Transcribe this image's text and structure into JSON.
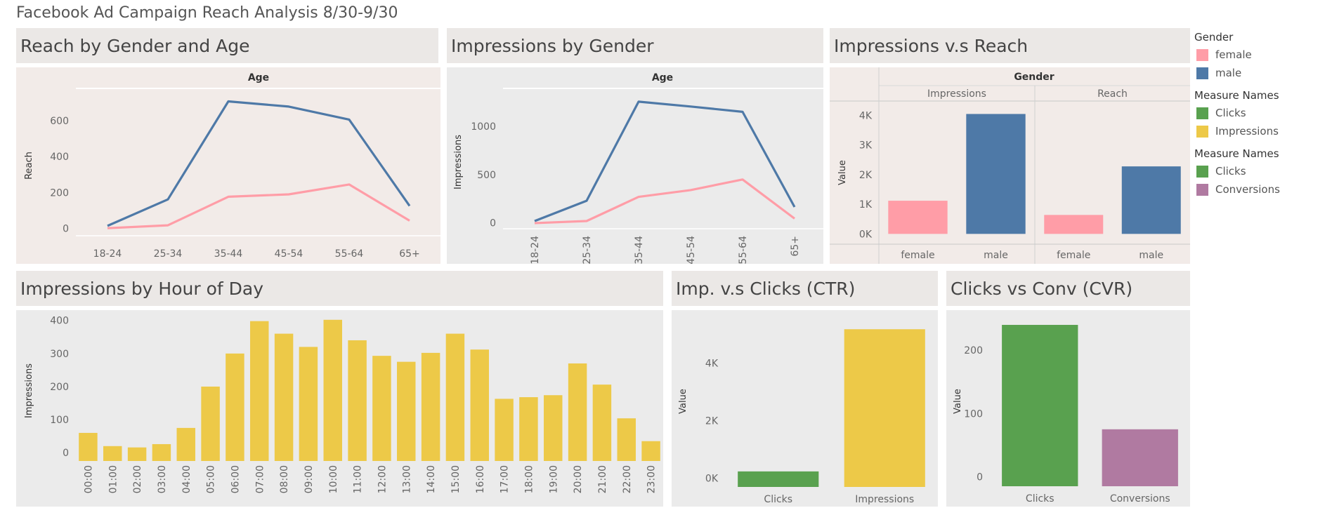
{
  "dashboard_title": "Facebook Ad Campaign Reach Analysis 8/30-9/30",
  "colors": {
    "female": "#ff9da7",
    "male": "#4e79a7",
    "clicks": "#59a14f",
    "impressions": "#edc948",
    "conversions": "#b07aa1"
  },
  "legend": {
    "gender_title": "Gender",
    "gender_items": [
      {
        "label": "female",
        "color": "#ff9da7"
      },
      {
        "label": "male",
        "color": "#4e79a7"
      }
    ],
    "measure1_title": "Measure Names",
    "measure1_items": [
      {
        "label": "Clicks",
        "color": "#59a14f"
      },
      {
        "label": "Impressions",
        "color": "#edc948"
      }
    ],
    "measure2_title": "Measure Names",
    "measure2_items": [
      {
        "label": "Clicks",
        "color": "#59a14f"
      },
      {
        "label": "Conversions",
        "color": "#b07aa1"
      }
    ]
  },
  "chart_data": [
    {
      "id": "reach",
      "type": "line",
      "title": "Reach by Gender and Age",
      "header": "Age",
      "ylabel": "Reach",
      "categories": [
        "18-24",
        "25-34",
        "35-44",
        "45-54",
        "55-64",
        "65+"
      ],
      "ylim": [
        -40,
        740
      ],
      "yticks": [
        0,
        200,
        400,
        600
      ],
      "series": [
        {
          "name": "male",
          "values": [
            15,
            162,
            707,
            678,
            606,
            126
          ]
        },
        {
          "name": "female",
          "values": [
            2,
            18,
            177,
            190,
            245,
            44
          ]
        }
      ]
    },
    {
      "id": "impressions_gender",
      "type": "line",
      "title": "Impressions by Gender",
      "header": "Age",
      "ylabel": "Impressions",
      "categories": [
        "18-24",
        "25-34",
        "35-44",
        "45-54",
        "55-64",
        "65+"
      ],
      "ylim": [
        -60,
        1320
      ],
      "yticks": [
        0,
        500,
        1000
      ],
      "series": [
        {
          "name": "male",
          "values": [
            20,
            230,
            1255,
            1205,
            1150,
            165
          ]
        },
        {
          "name": "female",
          "values": [
            -2,
            20,
            270,
            340,
            450,
            45
          ]
        }
      ]
    },
    {
      "id": "imp_vs_reach",
      "type": "bar",
      "title": "Impressions v.s Reach",
      "header": "Gender",
      "ylabel": "Value",
      "groups": [
        "Impressions",
        "Reach"
      ],
      "categories": [
        "female",
        "male"
      ],
      "ylim": [
        -300,
        4250
      ],
      "yticks": [
        0,
        1000,
        2000,
        3000,
        4000
      ],
      "ytick_labels": [
        "0K",
        "1K",
        "2K",
        "3K",
        "4K"
      ],
      "values": [
        [
          1120,
          4050
        ],
        [
          640,
          2280
        ]
      ]
    },
    {
      "id": "hourly",
      "type": "bar",
      "title": "Impressions by Hour of Day",
      "ylabel": "Impressions",
      "categories": [
        "00:00",
        "01:00",
        "02:00",
        "03:00",
        "04:00",
        "05:00",
        "06:00",
        "07:00",
        "08:00",
        "09:00",
        "10:00",
        "11:00",
        "12:00",
        "13:00",
        "14:00",
        "15:00",
        "16:00",
        "17:00",
        "18:00",
        "19:00",
        "20:00",
        "21:00",
        "22:00",
        "23:00"
      ],
      "ylim": [
        -25,
        410
      ],
      "yticks": [
        0,
        100,
        200,
        300,
        400
      ],
      "values": [
        60,
        20,
        16,
        26,
        75,
        200,
        300,
        398,
        360,
        320,
        402,
        340,
        293,
        275,
        302,
        360,
        312,
        163,
        168,
        174,
        270,
        206,
        104,
        35
      ]
    },
    {
      "id": "ctr",
      "type": "bar",
      "title": "Imp. v.s Clicks (CTR)",
      "ylabel": "Value",
      "categories": [
        "Clicks",
        "Impressions"
      ],
      "ylim": [
        -300,
        5600
      ],
      "yticks": [
        0,
        2000,
        4000
      ],
      "ytick_labels": [
        "0K",
        "2K",
        "4K"
      ],
      "values": [
        240,
        5180
      ]
    },
    {
      "id": "cvr",
      "type": "bar",
      "title": "Clicks vs Conv (CVR)",
      "ylabel": "Value",
      "categories": [
        "Clicks",
        "Conversions"
      ],
      "ylim": [
        -15,
        250
      ],
      "yticks": [
        0,
        100,
        200
      ],
      "values": [
        240,
        75
      ]
    }
  ]
}
